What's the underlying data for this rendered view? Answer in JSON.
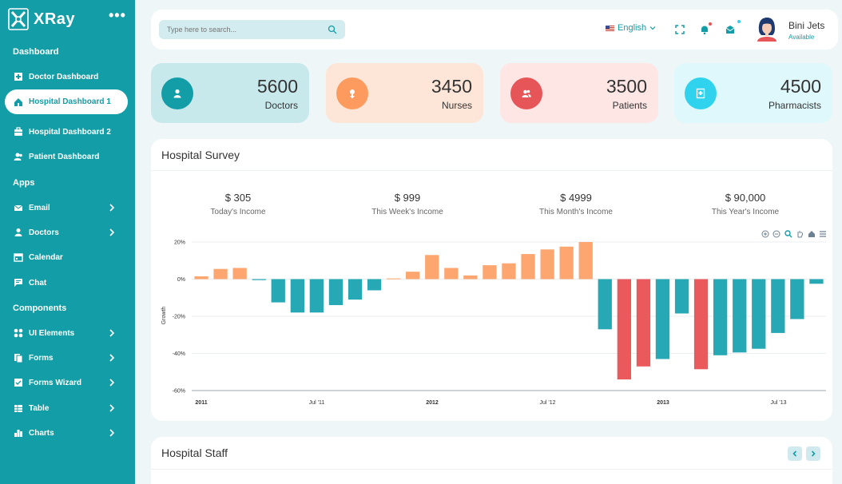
{
  "brand": {
    "name": "XRay"
  },
  "sidebar": {
    "sections": [
      {
        "title": "Dashboard"
      },
      {
        "title": "Apps"
      },
      {
        "title": "Components"
      }
    ],
    "items": [
      {
        "label": "Doctor Dashboard",
        "icon": "hospital-icon"
      },
      {
        "label": "Hospital Dashboard 1",
        "icon": "home-icon"
      },
      {
        "label": "Hospital Dashboard 2",
        "icon": "briefcase-icon"
      },
      {
        "label": "Patient Dashboard",
        "icon": "users-icon"
      },
      {
        "label": "Email",
        "icon": "envelope-icon"
      },
      {
        "label": "Doctors",
        "icon": "user-icon"
      },
      {
        "label": "Calendar",
        "icon": "calendar-icon"
      },
      {
        "label": "Chat",
        "icon": "chat-icon"
      },
      {
        "label": "UI Elements",
        "icon": "grid-icon"
      },
      {
        "label": "Forms",
        "icon": "forms-icon"
      },
      {
        "label": "Forms Wizard",
        "icon": "wizard-icon"
      },
      {
        "label": "Table",
        "icon": "table-icon"
      },
      {
        "label": "Charts",
        "icon": "chart-icon"
      }
    ]
  },
  "header": {
    "search_placeholder": "Type here to search...",
    "language": "English",
    "user": {
      "name": "Bini Jets",
      "status": "Available"
    }
  },
  "stats": [
    {
      "value": "5600",
      "label": "Doctors",
      "bg": "#c8e9ec",
      "color": "#139da6"
    },
    {
      "value": "3450",
      "label": "Nurses",
      "bg": "#fde6d8",
      "color": "#fd9b5e"
    },
    {
      "value": "3500",
      "label": "Patients",
      "bg": "#fde6e4",
      "color": "#e65558"
    },
    {
      "value": "4500",
      "label": "Pharmacists",
      "bg": "#dff8fc",
      "color": "#2fd3ee"
    }
  ],
  "survey": {
    "title": "Hospital Survey",
    "incomes": [
      {
        "amount": "$ 305",
        "caption": "Today's Income"
      },
      {
        "amount": "$ 999",
        "caption": "This Week's Income"
      },
      {
        "amount": "$ 4999",
        "caption": "This Month's Income"
      },
      {
        "amount": "$ 90,000",
        "caption": "This Year's Income"
      }
    ]
  },
  "staff": {
    "title": "Hospital Staff"
  },
  "chart_data": {
    "type": "bar",
    "ylabel": "Growth",
    "ylim": [
      -60,
      20
    ],
    "yticks": [
      "20%",
      "0%",
      "-20%",
      "-40%",
      "-60%"
    ],
    "ytick_values": [
      20,
      0,
      -20,
      -40,
      -60
    ],
    "xticks": [
      {
        "label": "2011",
        "bold": true
      },
      {
        "label": "Jul '11",
        "bold": false
      },
      {
        "label": "2012",
        "bold": true
      },
      {
        "label": "Jul '12",
        "bold": false
      },
      {
        "label": "2013",
        "bold": true
      },
      {
        "label": "Jul '13",
        "bold": false
      }
    ],
    "colors": {
      "positive": "#fea66f",
      "negative": "#26a8b5",
      "highlight": "#ea5a5d"
    },
    "values": [
      1.5,
      5.5,
      6,
      -0.5,
      -12.5,
      -18,
      -18,
      -14,
      -11,
      -6,
      0.4,
      4,
      13,
      6,
      2,
      7.5,
      8.5,
      13.5,
      16,
      17.5,
      20,
      -27,
      -54,
      -47,
      -43,
      -18.5,
      -48.5,
      -41,
      -39.5,
      -37.5,
      -29,
      -21.5,
      -2.5
    ],
    "highlighted": [
      22,
      23,
      26
    ]
  }
}
